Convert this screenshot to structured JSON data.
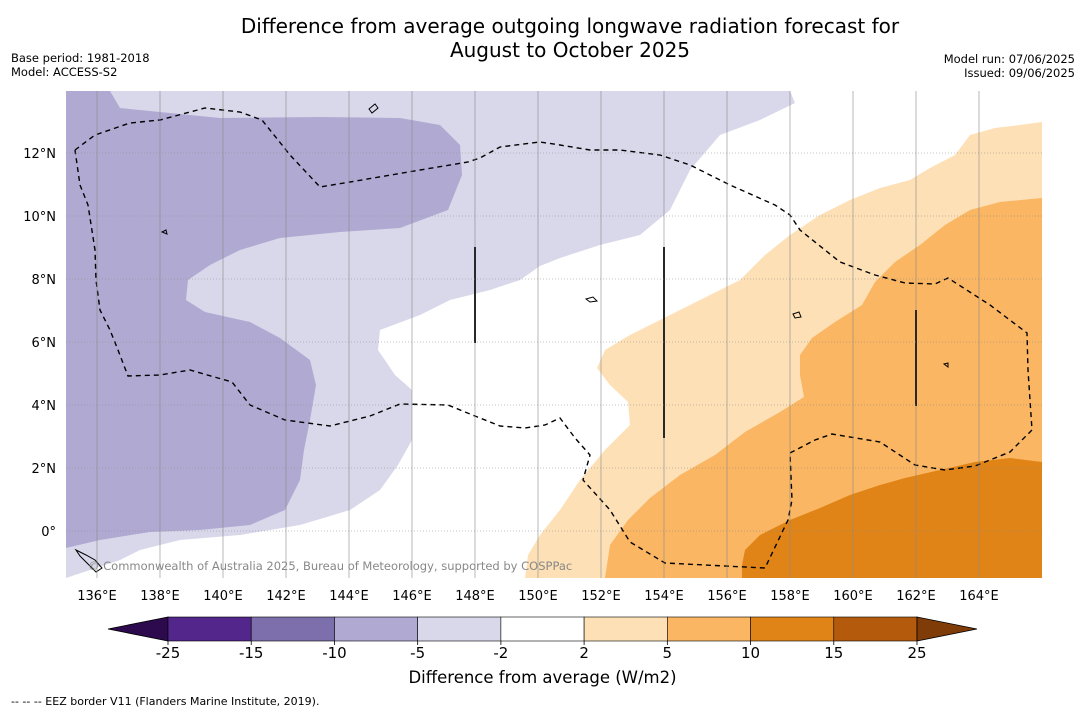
{
  "title_line1": "Difference from average outgoing longwave radiation forecast for",
  "title_line2": "August to October 2025",
  "base_period": "Base period: 1981-2018",
  "model": "Model: ACCESS-S2",
  "model_run": "Model run: 07/06/2025",
  "issued": "Issued: 09/06/2025",
  "copyright": "© Commonwealth of Australia 2025, Bureau of Meteorology, supported by COSPPac",
  "lat_ticks": [
    "12°N",
    "10°N",
    "8°N",
    "6°N",
    "4°N",
    "2°N",
    "0°"
  ],
  "lon_ticks": [
    "136°E",
    "138°E",
    "140°E",
    "142°E",
    "144°E",
    "146°E",
    "148°E",
    "150°E",
    "152°E",
    "154°E",
    "156°E",
    "158°E",
    "160°E",
    "162°E",
    "164°E"
  ],
  "colorbar": {
    "label": "Difference from average (W/m2)",
    "ticks": [
      "-25",
      "-15",
      "-10",
      "-5",
      "-2",
      "2",
      "5",
      "10",
      "15",
      "25"
    ],
    "colors": {
      "below": "#2d0a4e",
      "bins": [
        "#52268a",
        "#7d6fac",
        "#b0aad3",
        "#d8d8ea",
        "#ffffff",
        "#fde0b6",
        "#fab662",
        "#e08418",
        "#b35a0d"
      ],
      "above": "#7f3b08"
    }
  },
  "footnote": "--  --  -- EEZ border V11 (Flanders Marine Institute, 2019)."
}
